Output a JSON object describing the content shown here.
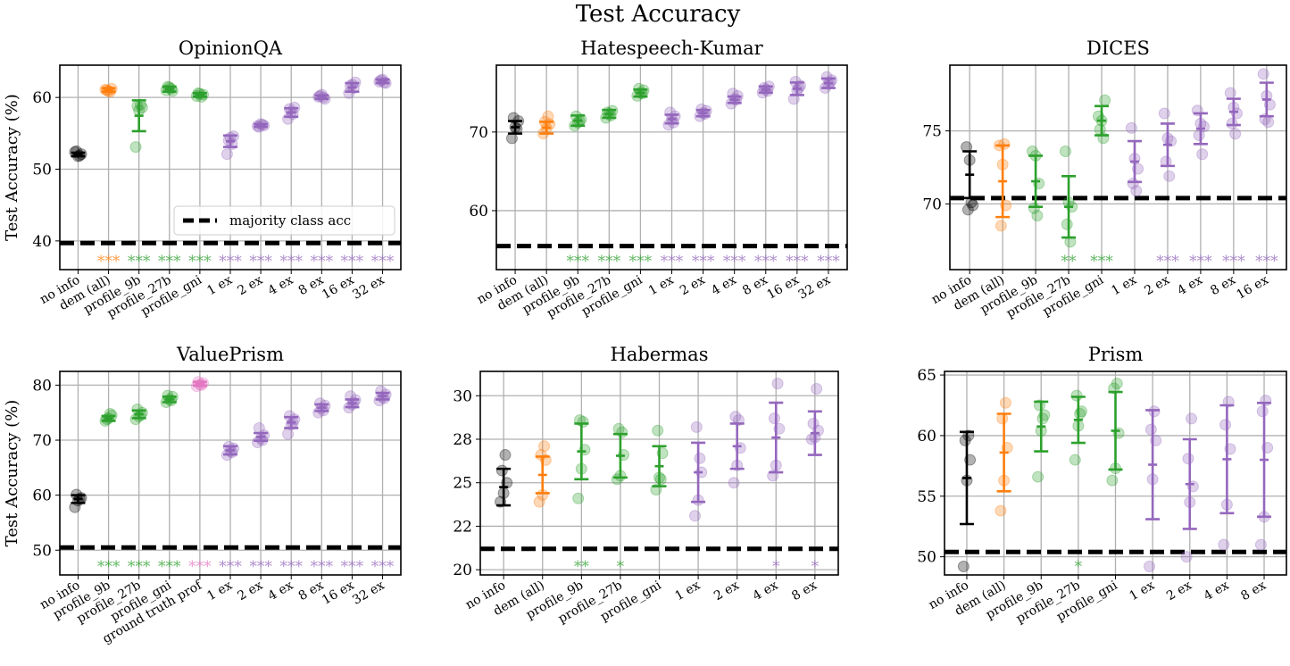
{
  "figure_title": "Test Accuracy",
  "legend_label": "majority class acc",
  "colors": {
    "no_info": "#000000",
    "dem": "#ff7f0e",
    "profile": "#2ca02c",
    "ground_truth": "#e377c2",
    "ex": "#9467bd",
    "grid": "#b0b0b0",
    "baseline": "#000000"
  },
  "chart_data": [
    {
      "type": "scatter",
      "title": "OpinionQA",
      "ylabel": "Test Accuracy (%)",
      "ylim": [
        36,
        64.5
      ],
      "yticks": [
        40,
        50,
        60
      ],
      "majority": 39.7,
      "categories": [
        "no info",
        "dem (all)",
        "profile_9b",
        "profile_27b",
        "profile_gni",
        "1 ex",
        "2 ex",
        "4 ex",
        "8 ex",
        "16 ex",
        "32 ex"
      ],
      "groups": [
        "no_info",
        "dem",
        "profile",
        "profile",
        "profile",
        "ex",
        "ex",
        "ex",
        "ex",
        "ex",
        "ex"
      ],
      "points": [
        [
          52.4,
          51.8,
          52.1,
          52.5,
          51.9
        ],
        [
          61.1,
          60.9,
          61.2,
          61.0,
          60.8
        ],
        [
          53.1,
          58.2,
          58.6,
          58.8,
          59.0
        ],
        [
          61.0,
          61.4,
          60.9,
          61.5,
          61.2
        ],
        [
          60.2,
          60.5,
          60.4,
          60.6,
          60.1
        ],
        [
          52.1,
          54.4,
          54.6,
          54.0,
          53.5
        ],
        [
          56.0,
          56.3,
          56.1,
          55.9,
          56.2
        ],
        [
          57.0,
          58.0,
          58.6,
          58.4,
          57.7
        ],
        [
          60.1,
          60.4,
          59.8,
          60.2,
          60.0
        ],
        [
          60.6,
          61.8,
          62.1,
          61.6,
          61.3
        ],
        [
          62.2,
          62.5,
          62.0,
          62.4,
          62.1
        ]
      ],
      "errorbars": [
        [
          51.8,
          52.3
        ],
        [
          60.8,
          61.3
        ],
        [
          55.3,
          59.6
        ],
        [
          60.8,
          61.5
        ],
        [
          60.1,
          60.6
        ],
        [
          53.1,
          54.7
        ],
        [
          55.9,
          56.3
        ],
        [
          57.3,
          58.5
        ],
        [
          59.8,
          60.3
        ],
        [
          60.8,
          62.0
        ],
        [
          62.0,
          62.5
        ]
      ],
      "significance": [
        "",
        "***",
        "***",
        "***",
        "***",
        "***",
        "***",
        "***",
        "***",
        "***",
        "***"
      ],
      "legend": true
    },
    {
      "type": "scatter",
      "title": "Hatespeech-Kumar",
      "ylabel": "",
      "ylim": [
        52.5,
        78.5
      ],
      "yticks": [
        60,
        70
      ],
      "majority": 55.5,
      "categories": [
        "no info",
        "dem (all)",
        "profile_9b",
        "profile_27b",
        "profile_gni",
        "1 ex",
        "2 ex",
        "4 ex",
        "8 ex",
        "16 ex",
        "32 ex"
      ],
      "groups": [
        "no_info",
        "dem",
        "profile",
        "profile",
        "profile",
        "ex",
        "ex",
        "ex",
        "ex",
        "ex",
        "ex"
      ],
      "points": [
        [
          69.2,
          70.6,
          71.4,
          71.8,
          70.4
        ],
        [
          69.8,
          70.5,
          71.0,
          71.3,
          72.0
        ],
        [
          70.8,
          71.2,
          71.6,
          72.0,
          71.4
        ],
        [
          71.8,
          72.3,
          72.7,
          72.5,
          72.1
        ],
        [
          74.6,
          75.0,
          75.3,
          75.5,
          74.9
        ],
        [
          70.9,
          71.6,
          72.0,
          72.5,
          71.2
        ],
        [
          72.0,
          72.4,
          72.7,
          72.9,
          72.3
        ],
        [
          73.6,
          74.2,
          74.6,
          74.9,
          74.1
        ],
        [
          75.0,
          75.4,
          75.8,
          75.6,
          75.2
        ],
        [
          74.2,
          75.3,
          75.9,
          76.4,
          75.6
        ],
        [
          75.6,
          76.1,
          76.6,
          77.0,
          76.3
        ]
      ],
      "errorbars": [
        [
          69.8,
          71.4
        ],
        [
          69.8,
          71.3
        ],
        [
          70.8,
          72.1
        ],
        [
          71.8,
          72.8
        ],
        [
          74.5,
          75.4
        ],
        [
          71.1,
          72.2
        ],
        [
          72.0,
          72.8
        ],
        [
          73.7,
          74.5
        ],
        [
          75.0,
          75.8
        ],
        [
          74.7,
          76.3
        ],
        [
          75.6,
          76.8
        ]
      ],
      "significance": [
        "",
        "",
        "***",
        "***",
        "***",
        "***",
        "***",
        "***",
        "***",
        "***",
        "***"
      ],
      "legend": false
    },
    {
      "type": "scatter",
      "title": "DICES",
      "ylabel": "",
      "ylim": [
        65.5,
        79.5
      ],
      "yticks": [
        70,
        75
      ],
      "majority": 70.4,
      "categories": [
        "no info",
        "dem (all)",
        "profile_9b",
        "profile_27b",
        "profile_gni",
        "1 ex",
        "2 ex",
        "4 ex",
        "8 ex",
        "16 ex"
      ],
      "groups": [
        "no_info",
        "dem",
        "profile",
        "profile",
        "profile",
        "ex",
        "ex",
        "ex",
        "ex",
        "ex"
      ],
      "points": [
        [
          73.9,
          73.0,
          69.9,
          69.6,
          70.1
        ],
        [
          74.0,
          72.7,
          69.9,
          68.5,
          74.1
        ],
        [
          73.6,
          73.3,
          71.4,
          69.7,
          69.2
        ],
        [
          73.6,
          70.1,
          69.8,
          68.6,
          67.4
        ],
        [
          76.0,
          75.7,
          77.1,
          75.1,
          74.5
        ],
        [
          75.2,
          73.1,
          72.4,
          71.4,
          70.9
        ],
        [
          76.2,
          74.5,
          74.3,
          72.9,
          71.9
        ],
        [
          76.4,
          75.5,
          75.3,
          74.7,
          73.4
        ],
        [
          77.6,
          76.6,
          76.2,
          75.5,
          74.8
        ],
        [
          78.9,
          77.4,
          76.8,
          75.8,
          75.6
        ]
      ],
      "errorbars": [
        [
          70.4,
          73.6
        ],
        [
          69.1,
          74.0
        ],
        [
          69.8,
          73.3
        ],
        [
          67.7,
          71.9
        ],
        [
          74.7,
          76.7
        ],
        [
          71.5,
          74.3
        ],
        [
          72.6,
          75.5
        ],
        [
          74.1,
          76.2
        ],
        [
          75.4,
          77.2
        ],
        [
          76.0,
          78.3
        ]
      ],
      "significance": [
        "",
        "",
        "",
        "**",
        "***",
        "",
        "***",
        "***",
        "***",
        "***"
      ],
      "legend": false
    },
    {
      "type": "scatter",
      "title": "ValuePrism",
      "ylabel": "Test Accuracy (%)",
      "ylim": [
        45.5,
        82.5
      ],
      "yticks": [
        50,
        60,
        70,
        80
      ],
      "majority": 50.5,
      "categories": [
        "no info",
        "profile_9b",
        "profile_27b",
        "profile_gni",
        "ground truth prof",
        "1 ex",
        "2 ex",
        "4 ex",
        "8 ex",
        "16 ex",
        "32 ex"
      ],
      "groups": [
        "no_info",
        "profile",
        "profile",
        "profile",
        "ground_truth",
        "ex",
        "ex",
        "ex",
        "ex",
        "ex",
        "ex"
      ],
      "points": [
        [
          57.8,
          59.0,
          59.5,
          60.1,
          59.3
        ],
        [
          73.5,
          74.0,
          74.5,
          73.8,
          74.8
        ],
        [
          73.8,
          74.3,
          75.0,
          75.6,
          74.6
        ],
        [
          76.9,
          77.4,
          77.9,
          78.1,
          77.2
        ],
        [
          79.8,
          80.1,
          80.4,
          80.6,
          80.0
        ],
        [
          67.3,
          68.0,
          68.5,
          68.8,
          67.8
        ],
        [
          69.6,
          70.3,
          70.9,
          72.2,
          70.0
        ],
        [
          71.1,
          72.8,
          73.8,
          74.4,
          73.1
        ],
        [
          75.0,
          75.8,
          76.3,
          76.7,
          75.4
        ],
        [
          75.9,
          76.5,
          77.3,
          78.0,
          76.8
        ],
        [
          77.2,
          77.8,
          78.3,
          78.9,
          77.6
        ]
      ],
      "errorbars": [
        [
          58.6,
          60.0
        ],
        [
          73.5,
          74.4
        ],
        [
          74.0,
          75.4
        ],
        [
          76.9,
          77.9
        ],
        [
          79.9,
          80.6
        ],
        [
          67.4,
          68.9
        ],
        [
          69.9,
          71.3
        ],
        [
          72.2,
          74.2
        ],
        [
          75.3,
          76.5
        ],
        [
          76.0,
          77.4
        ],
        [
          77.4,
          78.6
        ]
      ],
      "significance": [
        "",
        "***",
        "***",
        "***",
        "***",
        "***",
        "***",
        "***",
        "***",
        "***",
        "***"
      ],
      "legend": false
    },
    {
      "type": "scatter",
      "title": "Habermas",
      "ylabel": "",
      "ylim": [
        19.7,
        31.4
      ],
      "yticks": [
        20,
        22,
        25,
        28,
        30
      ],
      "ytick_positions": [
        20,
        22.5,
        25,
        27.5,
        30
      ],
      "majority": 21.2,
      "categories": [
        "no info",
        "dem (all)",
        "profile_9b",
        "profile_27b",
        "profile_gni",
        "1 ex",
        "2 ex",
        "4 ex",
        "8 ex"
      ],
      "groups": [
        "no_info",
        "dem",
        "profile",
        "profile",
        "profile",
        "ex",
        "ex",
        "ex",
        "ex"
      ],
      "points": [
        [
          23.9,
          24.4,
          25.0,
          25.7,
          26.6
        ],
        [
          23.9,
          24.3,
          26.3,
          26.6,
          27.1
        ],
        [
          24.1,
          25.8,
          26.9,
          28.6,
          28.5
        ],
        [
          25.2,
          25.4,
          26.6,
          28.1,
          27.9
        ],
        [
          24.6,
          25.3,
          26.7,
          28.0,
          25.2
        ],
        [
          23.1,
          24.0,
          25.6,
          28.2,
          26.4
        ],
        [
          25.0,
          26.0,
          27.0,
          28.8,
          28.6
        ],
        [
          25.4,
          26.0,
          28.1,
          28.7,
          30.7
        ],
        [
          27.5,
          27.6,
          28.0,
          28.4,
          30.4
        ]
      ],
      "errorbars": [
        [
          23.7,
          25.8
        ],
        [
          24.4,
          26.5
        ],
        [
          25.2,
          28.4
        ],
        [
          25.3,
          27.8
        ],
        [
          24.8,
          27.1
        ],
        [
          23.9,
          27.3
        ],
        [
          25.8,
          28.4
        ],
        [
          25.6,
          29.6
        ],
        [
          26.6,
          29.1
        ]
      ],
      "significance": [
        "",
        "",
        "**",
        "*",
        "",
        "",
        "",
        "*",
        "*"
      ],
      "legend": false
    },
    {
      "type": "scatter",
      "title": "Prism",
      "ylabel": "",
      "ylim": [
        48.5,
        65.3
      ],
      "yticks": [
        50,
        55,
        60,
        65
      ],
      "majority": 50.4,
      "categories": [
        "no info",
        "dem (all)",
        "profile_9b",
        "profile_27b",
        "profile_gni",
        "1 ex",
        "2 ex",
        "4 ex",
        "8 ex"
      ],
      "groups": [
        "no_info",
        "dem",
        "profile",
        "profile",
        "profile",
        "ex",
        "ex",
        "ex",
        "ex"
      ],
      "points": [
        [
          49.2,
          56.3,
          58.0,
          59.6,
          60.0
        ],
        [
          53.8,
          56.3,
          59.0,
          61.4,
          62.7
        ],
        [
          56.6,
          60.4,
          61.7,
          62.5,
          61.4
        ],
        [
          58.0,
          60.8,
          62.0,
          63.3,
          61.8
        ],
        [
          56.3,
          57.3,
          60.2,
          63.9,
          64.3
        ],
        [
          49.2,
          56.4,
          59.6,
          60.5,
          62.0
        ],
        [
          50.0,
          54.5,
          55.8,
          58.1,
          61.4
        ],
        [
          51.0,
          54.3,
          58.9,
          60.9,
          62.8
        ],
        [
          51.0,
          53.3,
          59.0,
          62.0,
          62.9
        ]
      ],
      "errorbars": [
        [
          52.7,
          60.3
        ],
        [
          55.4,
          61.8
        ],
        [
          58.7,
          62.8
        ],
        [
          59.4,
          63.2
        ],
        [
          57.2,
          63.6
        ],
        [
          53.1,
          62.1
        ],
        [
          52.3,
          59.7
        ],
        [
          53.6,
          62.5
        ],
        [
          53.3,
          62.7
        ]
      ],
      "significance": [
        "",
        "",
        "",
        "*",
        "",
        "",
        "",
        "",
        ""
      ],
      "legend": false
    }
  ]
}
